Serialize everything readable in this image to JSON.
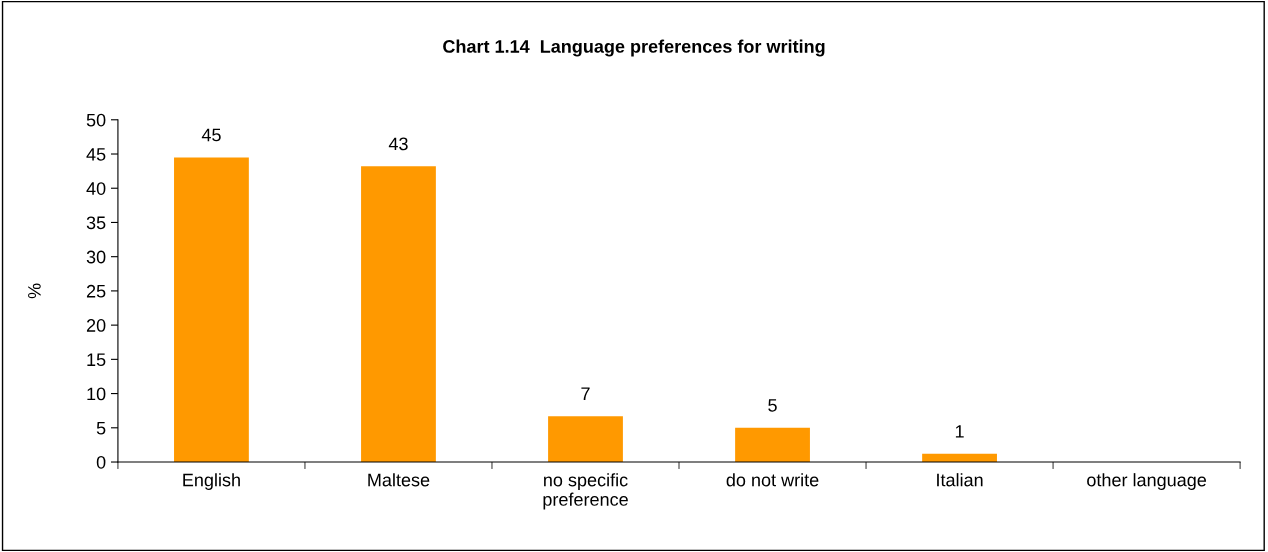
{
  "chart_data": {
    "type": "bar",
    "title": "Chart 1.14  Language preferences for writing",
    "ylabel": "%",
    "categories": [
      "English",
      "Maltese",
      "no specific\npreference",
      "do not write",
      "Italian",
      "other language"
    ],
    "values": [
      44.5,
      43.2,
      6.7,
      5.0,
      1.2,
      0
    ],
    "value_labels": [
      "45",
      "43",
      "7",
      "5",
      "1",
      null
    ],
    "color": "#ff9900",
    "ylim": [
      0,
      50
    ],
    "yticks": [
      0,
      5,
      10,
      15,
      20,
      25,
      30,
      35,
      40,
      45,
      50
    ],
    "grid": false
  }
}
